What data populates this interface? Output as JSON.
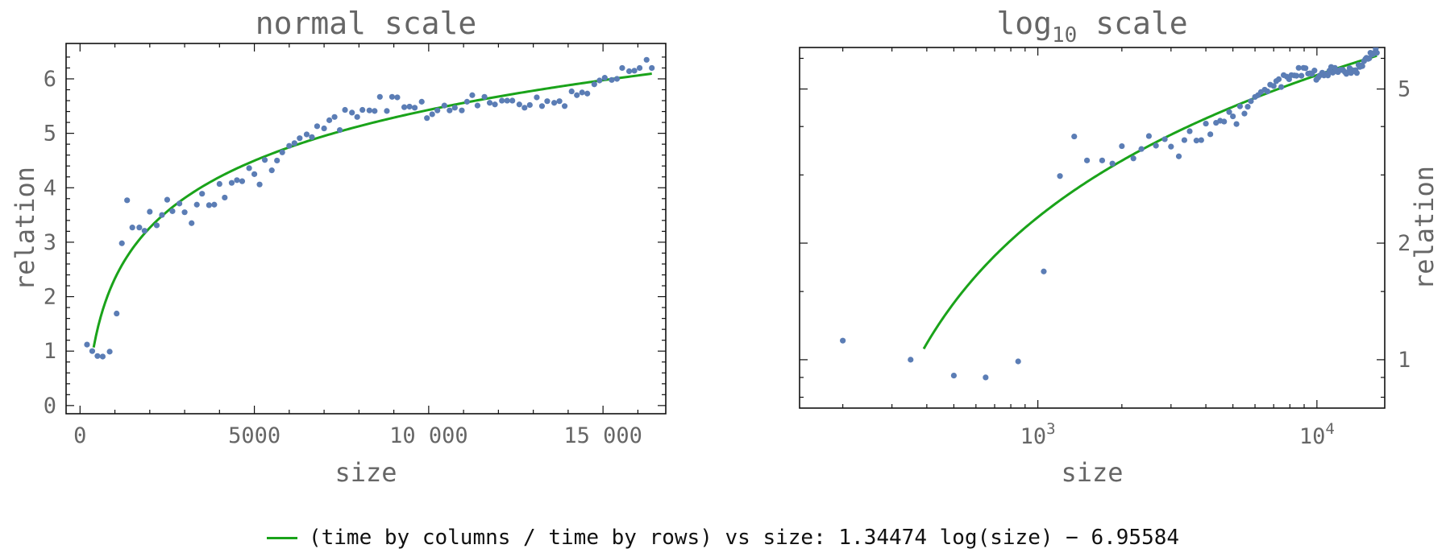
{
  "chart_data": [
    {
      "type": "scatter",
      "title": "normal scale",
      "xlabel": "size",
      "ylabel": "relation",
      "xlim": [
        -400,
        16800
      ],
      "ylim": [
        -0.15,
        6.65
      ],
      "x_ticks": [
        0,
        5000,
        10000,
        15000
      ],
      "x_tick_labels": [
        "0",
        "5000",
        "10 000",
        "15 000"
      ],
      "y_ticks": [
        0,
        1,
        2,
        3,
        4,
        5,
        6
      ],
      "y_tick_labels": [
        "0",
        "1",
        "2",
        "3",
        "4",
        "5",
        "6"
      ],
      "grid": false,
      "series": [
        {
          "type": "scatter",
          "color": "#5b7db5",
          "points": [
            [
              200,
              1.12
            ],
            [
              350,
              1.0
            ],
            [
              500,
              0.91
            ],
            [
              650,
              0.9
            ],
            [
              850,
              0.99
            ],
            [
              1050,
              1.69
            ],
            [
              1200,
              2.98
            ],
            [
              1350,
              3.77
            ],
            [
              1500,
              3.27
            ],
            [
              1700,
              3.27
            ],
            [
              1850,
              3.21
            ],
            [
              2000,
              3.56
            ],
            [
              2200,
              3.31
            ],
            [
              2350,
              3.5
            ],
            [
              2500,
              3.78
            ],
            [
              2650,
              3.57
            ],
            [
              2850,
              3.71
            ],
            [
              3000,
              3.55
            ],
            [
              3200,
              3.35
            ],
            [
              3350,
              3.69
            ],
            [
              3500,
              3.89
            ],
            [
              3700,
              3.68
            ],
            [
              3850,
              3.69
            ],
            [
              4000,
              4.07
            ],
            [
              4150,
              3.82
            ],
            [
              4350,
              4.09
            ],
            [
              4500,
              4.14
            ],
            [
              4650,
              4.12
            ],
            [
              4850,
              4.36
            ],
            [
              5000,
              4.25
            ],
            [
              5150,
              4.06
            ],
            [
              5300,
              4.51
            ],
            [
              5500,
              4.32
            ],
            [
              5650,
              4.5
            ],
            [
              5800,
              4.65
            ],
            [
              6000,
              4.77
            ],
            [
              6150,
              4.82
            ],
            [
              6300,
              4.91
            ],
            [
              6500,
              4.98
            ],
            [
              6650,
              4.93
            ],
            [
              6800,
              5.13
            ],
            [
              7000,
              5.09
            ],
            [
              7150,
              5.24
            ],
            [
              7300,
              5.3
            ],
            [
              7450,
              5.06
            ],
            [
              7600,
              5.43
            ],
            [
              7800,
              5.38
            ],
            [
              7950,
              5.3
            ],
            [
              8100,
              5.43
            ],
            [
              8300,
              5.42
            ],
            [
              8450,
              5.41
            ],
            [
              8600,
              5.67
            ],
            [
              8800,
              5.41
            ],
            [
              8950,
              5.67
            ],
            [
              9100,
              5.66
            ],
            [
              9300,
              5.48
            ],
            [
              9450,
              5.49
            ],
            [
              9600,
              5.47
            ],
            [
              9800,
              5.58
            ],
            [
              9950,
              5.28
            ],
            [
              10100,
              5.35
            ],
            [
              10250,
              5.42
            ],
            [
              10450,
              5.51
            ],
            [
              10600,
              5.42
            ],
            [
              10750,
              5.47
            ],
            [
              10950,
              5.42
            ],
            [
              11100,
              5.58
            ],
            [
              11250,
              5.7
            ],
            [
              11400,
              5.51
            ],
            [
              11600,
              5.67
            ],
            [
              11750,
              5.56
            ],
            [
              11900,
              5.53
            ],
            [
              12100,
              5.6
            ],
            [
              12250,
              5.6
            ],
            [
              12400,
              5.6
            ],
            [
              12600,
              5.53
            ],
            [
              12750,
              5.47
            ],
            [
              12900,
              5.52
            ],
            [
              13100,
              5.66
            ],
            [
              13250,
              5.5
            ],
            [
              13400,
              5.59
            ],
            [
              13600,
              5.56
            ],
            [
              13750,
              5.59
            ],
            [
              13900,
              5.5
            ],
            [
              14100,
              5.77
            ],
            [
              14250,
              5.7
            ],
            [
              14400,
              5.75
            ],
            [
              14550,
              5.73
            ],
            [
              14750,
              5.9
            ],
            [
              14900,
              5.97
            ],
            [
              15050,
              6.02
            ],
            [
              15250,
              5.98
            ],
            [
              15400,
              6.0
            ],
            [
              15550,
              6.2
            ],
            [
              15750,
              6.14
            ],
            [
              15900,
              6.15
            ],
            [
              16050,
              6.2
            ],
            [
              16250,
              6.35
            ],
            [
              16400,
              6.2
            ]
          ]
        },
        {
          "type": "line",
          "name": "(time by columns / time by rows) vs size: 1.34474 log(size) - 6.95584",
          "color": "#1aa31a",
          "function": {
            "a": 1.34474,
            "b": -6.95584,
            "form": "a*ln(x)+b"
          },
          "domain": [
            390,
            16400
          ]
        }
      ]
    },
    {
      "type": "scatter",
      "title": "log",
      "title_sub": "10",
      "title_rest": " scale",
      "xlabel": "size",
      "ylabel": "relation",
      "x_scale": "log",
      "y_scale": "log",
      "xlim": [
        140,
        17500
      ],
      "ylim": [
        0.75,
        6.4
      ],
      "x_ticks": [
        1000,
        10000
      ],
      "x_tick_labels": [
        {
          "base": "10",
          "exp": "3"
        },
        {
          "base": "10",
          "exp": "4"
        }
      ],
      "y_ticks": [
        1,
        2,
        5
      ],
      "y_tick_labels": [
        "1",
        "2",
        "5"
      ],
      "grid": false,
      "series": [
        {
          "type": "scatter",
          "color": "#5b7db5",
          "points": [
            [
              200,
              1.12
            ],
            [
              350,
              1.0
            ],
            [
              500,
              0.91
            ],
            [
              650,
              0.9
            ],
            [
              850,
              0.99
            ],
            [
              1050,
              1.69
            ],
            [
              1200,
              2.98
            ],
            [
              1350,
              3.77
            ],
            [
              1500,
              3.27
            ],
            [
              1700,
              3.27
            ],
            [
              1850,
              3.21
            ],
            [
              2000,
              3.56
            ],
            [
              2200,
              3.31
            ],
            [
              2350,
              3.5
            ],
            [
              2500,
              3.78
            ],
            [
              2650,
              3.57
            ],
            [
              2850,
              3.71
            ],
            [
              3000,
              3.55
            ],
            [
              3200,
              3.35
            ],
            [
              3350,
              3.69
            ],
            [
              3500,
              3.89
            ],
            [
              3700,
              3.68
            ],
            [
              3850,
              3.69
            ],
            [
              4000,
              4.07
            ],
            [
              4150,
              3.82
            ],
            [
              4350,
              4.09
            ],
            [
              4500,
              4.14
            ],
            [
              4650,
              4.12
            ],
            [
              4850,
              4.36
            ],
            [
              5000,
              4.25
            ],
            [
              5150,
              4.06
            ],
            [
              5300,
              4.51
            ],
            [
              5500,
              4.32
            ],
            [
              5650,
              4.5
            ],
            [
              5800,
              4.65
            ],
            [
              6000,
              4.77
            ],
            [
              6150,
              4.82
            ],
            [
              6300,
              4.91
            ],
            [
              6500,
              4.98
            ],
            [
              6650,
              4.93
            ],
            [
              6800,
              5.13
            ],
            [
              7000,
              5.09
            ],
            [
              7150,
              5.24
            ],
            [
              7300,
              5.3
            ],
            [
              7450,
              5.06
            ],
            [
              7600,
              5.43
            ],
            [
              7800,
              5.38
            ],
            [
              7950,
              5.3
            ],
            [
              8100,
              5.43
            ],
            [
              8300,
              5.42
            ],
            [
              8450,
              5.41
            ],
            [
              8600,
              5.67
            ],
            [
              8800,
              5.41
            ],
            [
              8950,
              5.67
            ],
            [
              9100,
              5.66
            ],
            [
              9300,
              5.48
            ],
            [
              9450,
              5.49
            ],
            [
              9600,
              5.47
            ],
            [
              9800,
              5.58
            ],
            [
              9950,
              5.28
            ],
            [
              10100,
              5.35
            ],
            [
              10250,
              5.42
            ],
            [
              10450,
              5.51
            ],
            [
              10600,
              5.42
            ],
            [
              10750,
              5.47
            ],
            [
              10950,
              5.42
            ],
            [
              11100,
              5.58
            ],
            [
              11250,
              5.7
            ],
            [
              11400,
              5.51
            ],
            [
              11600,
              5.67
            ],
            [
              11750,
              5.56
            ],
            [
              11900,
              5.53
            ],
            [
              12100,
              5.6
            ],
            [
              12250,
              5.6
            ],
            [
              12400,
              5.6
            ],
            [
              12600,
              5.53
            ],
            [
              12750,
              5.47
            ],
            [
              12900,
              5.52
            ],
            [
              13100,
              5.66
            ],
            [
              13250,
              5.5
            ],
            [
              13400,
              5.59
            ],
            [
              13600,
              5.56
            ],
            [
              13750,
              5.59
            ],
            [
              13900,
              5.5
            ],
            [
              14100,
              5.77
            ],
            [
              14250,
              5.7
            ],
            [
              14400,
              5.75
            ],
            [
              14550,
              5.73
            ],
            [
              14750,
              5.9
            ],
            [
              14900,
              5.97
            ],
            [
              15050,
              6.02
            ],
            [
              15250,
              5.98
            ],
            [
              15400,
              6.0
            ],
            [
              15550,
              6.2
            ],
            [
              15750,
              6.14
            ],
            [
              15900,
              6.15
            ],
            [
              16050,
              6.2
            ],
            [
              16250,
              6.35
            ],
            [
              16400,
              6.2
            ]
          ]
        },
        {
          "type": "line",
          "name": "(time by columns / time by rows) vs size: 1.34474 log(size) - 6.95584",
          "color": "#1aa31a",
          "function": {
            "a": 1.34474,
            "b": -6.95584,
            "form": "a*ln(x)+b"
          },
          "domain": [
            390,
            16400
          ]
        }
      ]
    }
  ],
  "legend": {
    "placement": "bottom-center",
    "label": "(time by columns / time by rows) vs size: 1.34474 log(size) − 6.95584",
    "color": "#1aa31a"
  }
}
